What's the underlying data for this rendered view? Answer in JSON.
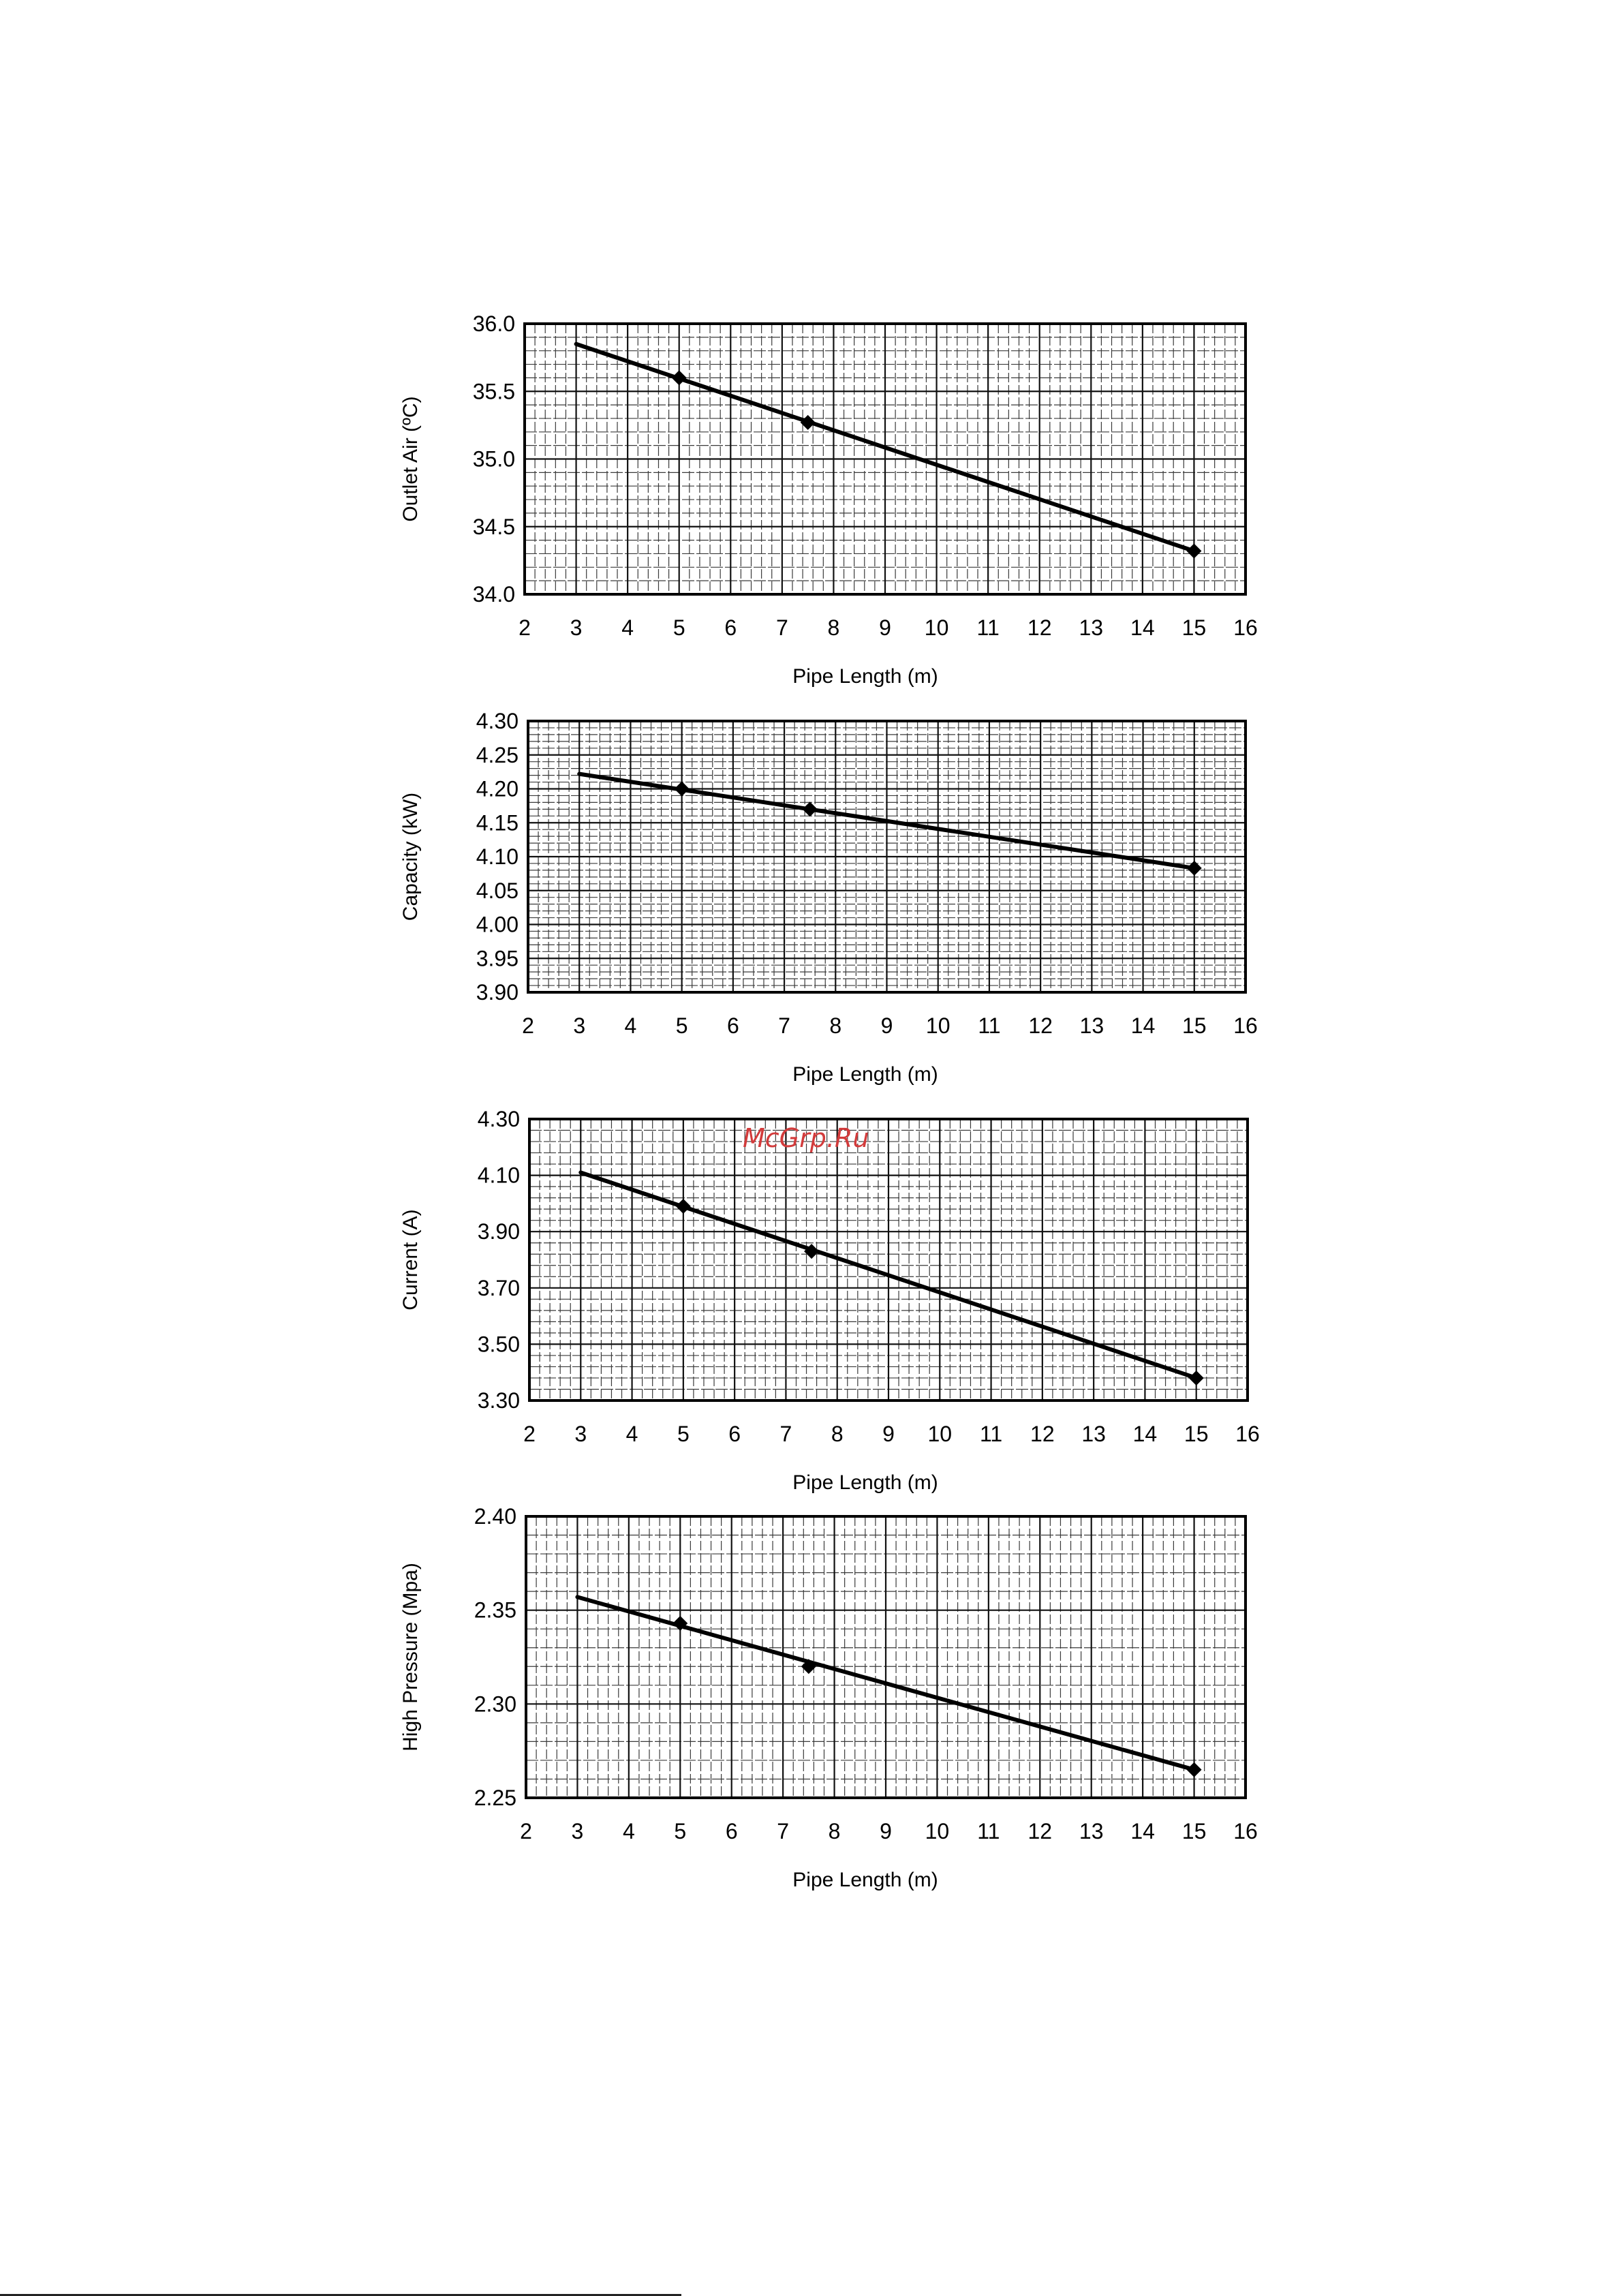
{
  "watermark": "McGrp.Ru",
  "chart_data": [
    {
      "type": "line",
      "ylabel": "Outlet Air (ºC)",
      "xlabel": "Pipe Length (m)",
      "xlim": [
        2,
        16
      ],
      "ylim": [
        34.0,
        36.0
      ],
      "xticks": [
        2,
        3,
        4,
        5,
        6,
        7,
        8,
        9,
        10,
        11,
        12,
        13,
        14,
        15,
        16
      ],
      "yticks": [
        "34.0",
        "34.5",
        "35.0",
        "35.5",
        "36.0"
      ],
      "line": {
        "x": [
          3,
          15
        ],
        "y": [
          35.85,
          34.32
        ]
      },
      "markers": {
        "x": [
          5,
          7.5,
          15
        ],
        "y": [
          35.6,
          35.27,
          34.32
        ]
      },
      "grid": true
    },
    {
      "type": "line",
      "ylabel": "Capacity (kW)",
      "xlabel": "Pipe Length (m)",
      "xlim": [
        2,
        16
      ],
      "ylim": [
        3.9,
        4.3
      ],
      "xticks": [
        2,
        3,
        4,
        5,
        6,
        7,
        8,
        9,
        10,
        11,
        12,
        13,
        14,
        15,
        16
      ],
      "yticks": [
        "3.90",
        "3.95",
        "4.00",
        "4.05",
        "4.10",
        "4.15",
        "4.20",
        "4.25",
        "4.30"
      ],
      "line": {
        "x": [
          3,
          15
        ],
        "y": [
          4.222,
          4.083
        ]
      },
      "markers": {
        "x": [
          5,
          7.5,
          15
        ],
        "y": [
          4.2,
          4.17,
          4.083
        ]
      },
      "grid": true
    },
    {
      "type": "line",
      "ylabel": "Current (A)",
      "xlabel": "Pipe Length (m)",
      "xlim": [
        2,
        16
      ],
      "ylim": [
        3.3,
        4.3
      ],
      "xticks": [
        2,
        3,
        4,
        5,
        6,
        7,
        8,
        9,
        10,
        11,
        12,
        13,
        14,
        15,
        16
      ],
      "yticks": [
        "3.30",
        "3.50",
        "3.70",
        "3.90",
        "4.10",
        "4.30"
      ],
      "line": {
        "x": [
          3,
          15
        ],
        "y": [
          4.11,
          3.38
        ]
      },
      "markers": {
        "x": [
          5,
          7.5,
          15
        ],
        "y": [
          3.99,
          3.83,
          3.38
        ]
      },
      "grid": true
    },
    {
      "type": "line",
      "ylabel": "High Pressure (Mpa)",
      "xlabel": "Pipe Length (m)",
      "xlim": [
        2,
        16
      ],
      "ylim": [
        2.25,
        2.4
      ],
      "xticks": [
        2,
        3,
        4,
        5,
        6,
        7,
        8,
        9,
        10,
        11,
        12,
        13,
        14,
        15,
        16
      ],
      "yticks": [
        "2.25",
        "2.30",
        "2.35",
        "2.40"
      ],
      "line": {
        "x": [
          3,
          15
        ],
        "y": [
          2.357,
          2.265
        ]
      },
      "markers": {
        "x": [
          5,
          7.5,
          15
        ],
        "y": [
          2.343,
          2.32,
          2.265
        ]
      },
      "grid": true
    }
  ]
}
